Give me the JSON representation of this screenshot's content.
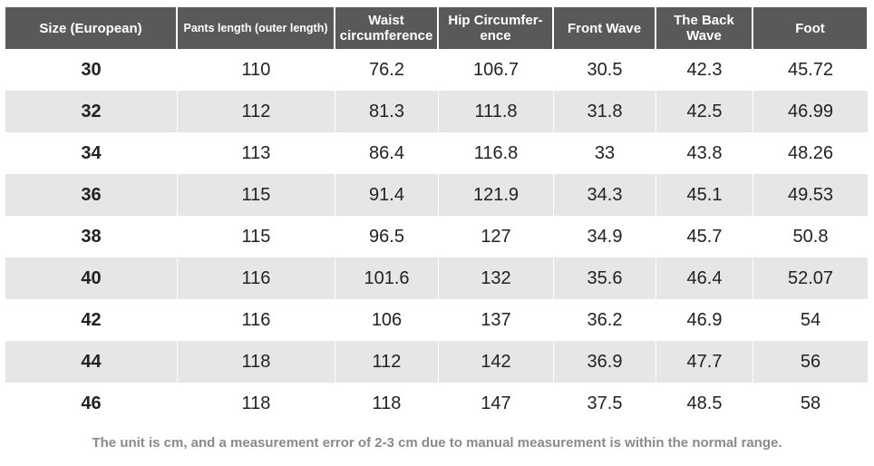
{
  "table": {
    "header": [
      "Size (European)",
      "Pants length (outer length)",
      "Waist circumference",
      "Hip Circumfer-ence",
      "Front Wave",
      "The Back Wave",
      "Foot"
    ],
    "rows": [
      [
        30,
        110,
        76.2,
        106.7,
        30.5,
        42.3,
        45.72
      ],
      [
        32,
        112,
        81.3,
        111.8,
        31.8,
        42.5,
        46.99
      ],
      [
        34,
        113,
        86.4,
        116.8,
        33,
        43.8,
        48.26
      ],
      [
        36,
        115,
        91.4,
        121.9,
        34.3,
        45.1,
        49.53
      ],
      [
        38,
        115,
        96.5,
        127,
        34.9,
        45.7,
        50.8
      ],
      [
        40,
        116,
        101.6,
        132,
        35.6,
        46.4,
        52.07
      ],
      [
        42,
        116,
        106,
        137,
        36.2,
        46.9,
        54
      ],
      [
        44,
        118,
        112,
        142,
        36.9,
        47.7,
        56
      ],
      [
        46,
        118,
        118,
        147,
        37.5,
        48.5,
        58
      ]
    ]
  },
  "note": "The unit is cm, and a measurement error of 2-3 cm due to manual measurement is within the normal range."
}
